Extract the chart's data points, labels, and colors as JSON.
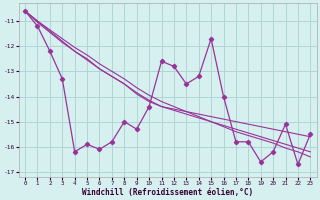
{
  "xlabel": "Windchill (Refroidissement éolien,°C)",
  "background_color": "#d6f0f0",
  "line_color": "#993399",
  "grid_color": "#b0d4d4",
  "x_values": [
    0,
    1,
    2,
    3,
    4,
    5,
    6,
    7,
    8,
    9,
    10,
    11,
    12,
    13,
    14,
    15,
    16,
    17,
    18,
    19,
    20,
    21,
    22,
    23
  ],
  "y_main": [
    -10.6,
    -11.2,
    -12.2,
    -13.3,
    -16.2,
    -15.9,
    -16.1,
    -15.8,
    -15.0,
    -15.3,
    -14.4,
    -12.6,
    -12.8,
    -13.5,
    -13.2,
    -11.7,
    -14.0,
    -15.8,
    -15.8,
    -16.6,
    -16.2,
    -15.1,
    -16.7,
    -15.5
  ],
  "y_trend1": [
    -10.6,
    -11.0,
    -11.4,
    -11.8,
    -12.2,
    -12.5,
    -12.9,
    -13.2,
    -13.5,
    -13.9,
    -14.2,
    -14.4,
    -14.5,
    -14.6,
    -14.7,
    -14.8,
    -14.9,
    -15.0,
    -15.1,
    -15.2,
    -15.3,
    -15.4,
    -15.5,
    -15.6
  ],
  "y_trend2": [
    -10.6,
    -11.05,
    -11.45,
    -11.85,
    -12.2,
    -12.55,
    -12.9,
    -13.2,
    -13.5,
    -13.85,
    -14.15,
    -14.4,
    -14.55,
    -14.7,
    -14.85,
    -15.0,
    -15.15,
    -15.3,
    -15.45,
    -15.6,
    -15.75,
    -15.9,
    -16.05,
    -16.2
  ],
  "y_trend3": [
    -10.6,
    -11.0,
    -11.35,
    -11.7,
    -12.05,
    -12.35,
    -12.7,
    -13.0,
    -13.3,
    -13.65,
    -13.95,
    -14.2,
    -14.4,
    -14.6,
    -14.8,
    -15.0,
    -15.2,
    -15.4,
    -15.55,
    -15.7,
    -15.85,
    -16.05,
    -16.2,
    -16.4
  ],
  "ylim": [
    -17.2,
    -10.3
  ],
  "yticks": [
    -17,
    -16,
    -15,
    -14,
    -13,
    -12,
    -11
  ],
  "xlim": [
    -0.5,
    23.5
  ],
  "xticks": [
    0,
    1,
    2,
    3,
    4,
    5,
    6,
    7,
    8,
    9,
    10,
    11,
    12,
    13,
    14,
    15,
    16,
    17,
    18,
    19,
    20,
    21,
    22,
    23
  ]
}
